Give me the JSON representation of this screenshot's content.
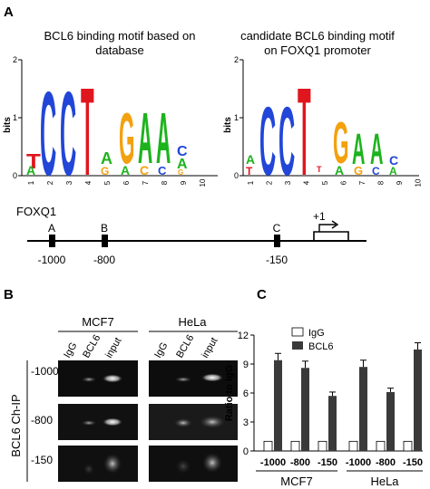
{
  "panels": {
    "a": {
      "label": "A",
      "logo_left": {
        "title_line1": "BCL6  binding motif based on",
        "title_line2": "database",
        "ylabel": "bits",
        "yticks": [
          "0",
          "1",
          "2"
        ],
        "positions": [
          "1",
          "2",
          "3",
          "4",
          "5",
          "6",
          "7",
          "8",
          "9",
          "10"
        ]
      },
      "logo_right": {
        "title_line1": "candidate BCL6 binding motif",
        "title_line2": "on FOXQ1 promoter",
        "ylabel": "bits",
        "yticks": [
          "0",
          "1",
          "2"
        ],
        "positions": [
          "1",
          "2",
          "3",
          "4",
          "5",
          "6",
          "7",
          "8",
          "9",
          "10"
        ]
      },
      "promoter": {
        "gene": "FOXQ1",
        "sites": [
          {
            "name": "A",
            "position": "-1000"
          },
          {
            "name": "B",
            "position": "-800"
          },
          {
            "name": "C",
            "position": "-150"
          }
        ],
        "tss_label": "+1"
      }
    },
    "b": {
      "label": "B",
      "groups": [
        "MCF7",
        "HeLa"
      ],
      "lanes": [
        "IgG",
        "BCL6",
        "input"
      ],
      "rows": [
        "-1000",
        "-800",
        "-150"
      ],
      "ylabel": "BCL6 Ch-IP"
    },
    "c": {
      "label": "C"
    }
  },
  "chart_data": {
    "type": "bar",
    "ylabel": "Ratio to IgG",
    "ylim": [
      0,
      12
    ],
    "yticks": [
      "0",
      "3",
      "6",
      "9",
      "12"
    ],
    "categories": [
      "-1000",
      "-800",
      "-150",
      "-1000",
      "-800",
      "-150"
    ],
    "groups": [
      "MCF7",
      "HeLa"
    ],
    "legend_position": "top-left",
    "series": [
      {
        "name": "IgG",
        "color": "#ffffff",
        "values": [
          1,
          1,
          1,
          1,
          1,
          1
        ],
        "errors": [
          0,
          0,
          0,
          0,
          0,
          0
        ]
      },
      {
        "name": "BCL6",
        "color": "#3a3a3a",
        "values": [
          9.4,
          8.6,
          5.7,
          8.7,
          6.1,
          10.5
        ],
        "errors": [
          0.7,
          0.7,
          0.4,
          0.7,
          0.4,
          0.7
        ]
      }
    ]
  },
  "colors": {
    "A": "#1db31d",
    "C": "#2146d8",
    "G": "#f3a10f",
    "T": "#e0161e",
    "bar_dark": "#3a3a3a"
  }
}
